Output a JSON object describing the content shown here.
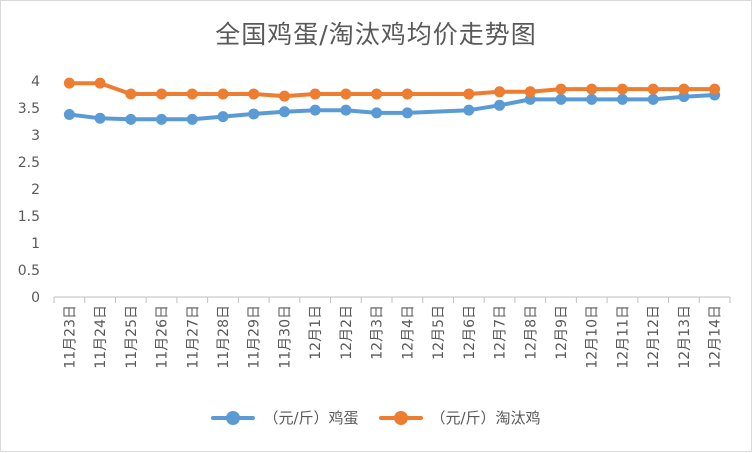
{
  "chart_data": {
    "type": "line",
    "title": "全国鸡蛋/淘汰鸡均价走势图",
    "categories": [
      "11月23日",
      "11月24日",
      "11月25日",
      "11月26日",
      "11月27日",
      "11月28日",
      "11月29日",
      "11月30日",
      "12月1日",
      "12月2日",
      "12月3日",
      "12月4日",
      "12月5日",
      "12月6日",
      "12月7日",
      "12月8日",
      "12月9日",
      "12月10日",
      "12月11日",
      "12月12日",
      "12月13日",
      "12月14日"
    ],
    "ylim": [
      0,
      4
    ],
    "yticks": [
      "0",
      "0.5",
      "1",
      "1.5",
      "2",
      "2.5",
      "3",
      "3.5",
      "4"
    ],
    "grid": false,
    "legend_position": "bottom",
    "series": [
      {
        "name": "（元/斤）鸡蛋",
        "color": "#5b9bd5",
        "values": [
          3.38,
          3.31,
          3.29,
          3.29,
          3.29,
          3.34,
          3.39,
          3.43,
          3.46,
          3.46,
          3.41,
          3.41,
          null,
          3.46,
          3.55,
          3.66,
          3.66,
          3.66,
          3.66,
          3.66,
          3.71,
          3.74
        ]
      },
      {
        "name": "（元/斤）淘汰鸡",
        "color": "#ed7d31",
        "values": [
          3.96,
          3.96,
          3.76,
          3.76,
          3.76,
          3.76,
          3.76,
          3.72,
          3.76,
          3.76,
          3.76,
          3.76,
          null,
          3.76,
          3.8,
          3.8,
          3.85,
          3.85,
          3.85,
          3.85,
          3.85,
          3.85
        ]
      }
    ]
  }
}
